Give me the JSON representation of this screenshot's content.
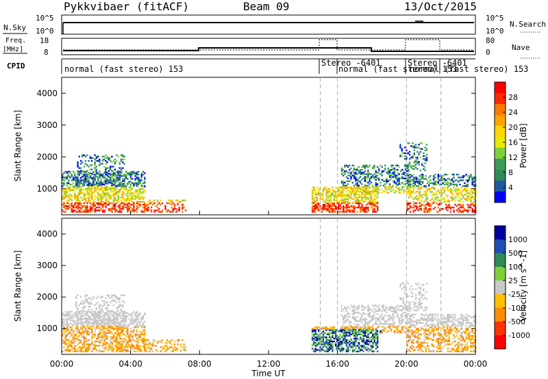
{
  "header": {
    "station": "Pykkvibaer (fitACF)",
    "beam": "Beam 09",
    "date": "13/Oct/2015"
  },
  "nsky_panel": {
    "left_label": "N.Sky",
    "left_ticks": [
      "10^5",
      "10^0"
    ],
    "right_label": "N.Search",
    "right_ticks": [
      "10^5",
      "10^0"
    ]
  },
  "freq_panel": {
    "left_label_1": "Freq.",
    "left_label_2": "[MHz]",
    "left_ticks": [
      "18",
      "8"
    ],
    "right_label": "Nave",
    "right_ticks": [
      "80",
      "0"
    ]
  },
  "cpid_panel": {
    "label": "CPID",
    "segments": [
      {
        "text": "normal (fast stereo) 153"
      },
      {
        "text": "Stereo -6401"
      },
      {
        "text": "normal (fast stereo) 153"
      },
      {
        "text": "Stereo -6401"
      },
      {
        "text": "normal (fast stereo) 153"
      }
    ]
  },
  "power_panel": {
    "ylabel": "Slant Range [km]",
    "colorbar_label": "Power [dB]",
    "colorbar_ticks": [
      "28",
      "24",
      "20",
      "16",
      "12",
      "8",
      "4"
    ],
    "colors": [
      "#ff0000",
      "#ff2a00",
      "#ff7a00",
      "#ffa500",
      "#ffd700",
      "#e8e800",
      "#7fd13b",
      "#3a9c5a",
      "#2e8b57",
      "#1e5aa0",
      "#0000ff"
    ]
  },
  "velocity_panel": {
    "ylabel": "Slant Range [km]",
    "colorbar_label": "Velocity [m s^-1]",
    "colorbar_ticks": [
      "1000",
      "500",
      "100",
      "25",
      "-25",
      "-100",
      "-500",
      "-1000"
    ],
    "colors": [
      "#0000a0",
      "#1e50b4",
      "#2e8b57",
      "#7fd13b",
      "#c8c8c8",
      "#ffc000",
      "#ff8c00",
      "#ff3200",
      "#ff0000"
    ]
  },
  "x_axis": {
    "label": "Time UT",
    "ticks": [
      "00:00",
      "04:00",
      "08:00",
      "12:00",
      "16:00",
      "20:00",
      "00:00"
    ]
  },
  "chart_data": {
    "type": "heatmap",
    "title": "Pykkvibaer (fitACF)  Beam 09  13/Oct/2015",
    "x_range_hours": [
      0,
      24
    ],
    "y_range_km": [
      180,
      4500
    ],
    "y_ticks_km": [
      1000,
      2000,
      3000,
      4000
    ],
    "mode_change_times_hours": [
      15,
      16,
      20,
      22
    ],
    "frequency_mhz": [
      {
        "start_h": 0,
        "end_h": 8,
        "value": 9.5
      },
      {
        "start_h": 8,
        "end_h": 18,
        "value": 10.5
      },
      {
        "start_h": 18,
        "end_h": 24,
        "value": 9.5
      }
    ],
    "nave_stereo_high": 80
  }
}
